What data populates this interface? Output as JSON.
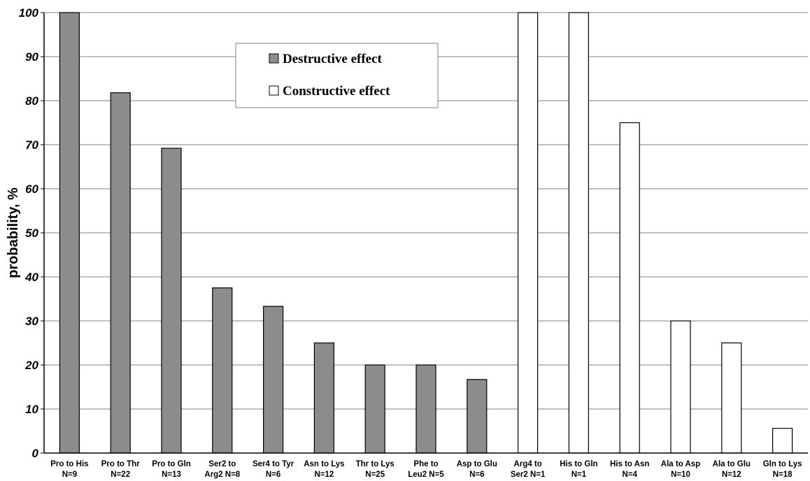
{
  "chart_data": {
    "type": "bar",
    "title": "",
    "xlabel": "",
    "ylabel": "probability, %",
    "ylim": [
      0,
      100
    ],
    "yticks": [
      0,
      10,
      20,
      30,
      40,
      50,
      60,
      70,
      80,
      90,
      100
    ],
    "grid": true,
    "legend_position": "top-center",
    "categories": [
      [
        "Pro to His",
        "N=9"
      ],
      [
        "Pro to Thr",
        "N=22"
      ],
      [
        "Pro to Gln",
        "N=13"
      ],
      [
        "Ser2 to",
        "Arg2 N=8"
      ],
      [
        "Ser4 to Tyr",
        "N=6"
      ],
      [
        "Asn to Lys",
        "N=12"
      ],
      [
        "Thr to Lys",
        "N=25"
      ],
      [
        "Phe to",
        "Leu2 N=5"
      ],
      [
        "Asp to Glu",
        "N=6"
      ],
      [
        "Arg4 to",
        "Ser2 N=1"
      ],
      [
        "His to Gln",
        "N=1"
      ],
      [
        "His to Asn",
        "N=4"
      ],
      [
        "Ala to Asp",
        "N=10"
      ],
      [
        "Ala to Glu",
        "N=12"
      ],
      [
        "Gln to Lys",
        "N=18"
      ]
    ],
    "values": [
      100,
      81.8,
      69.2,
      37.5,
      33.3,
      25,
      20,
      20,
      16.7,
      100,
      100,
      75,
      30,
      25,
      5.6
    ],
    "bar_effect": [
      "destructive",
      "destructive",
      "destructive",
      "destructive",
      "destructive",
      "destructive",
      "destructive",
      "destructive",
      "destructive",
      "constructive",
      "constructive",
      "constructive",
      "constructive",
      "constructive",
      "constructive"
    ],
    "legend": [
      {
        "key": "destructive",
        "label": "Destructive effect",
        "color": "#8c8c8c"
      },
      {
        "key": "constructive",
        "label": "Constructive effect",
        "color": "#ffffff"
      }
    ],
    "colors": {
      "grid": "#808080",
      "axis": "#000000",
      "bar_outline": "#000000"
    }
  }
}
